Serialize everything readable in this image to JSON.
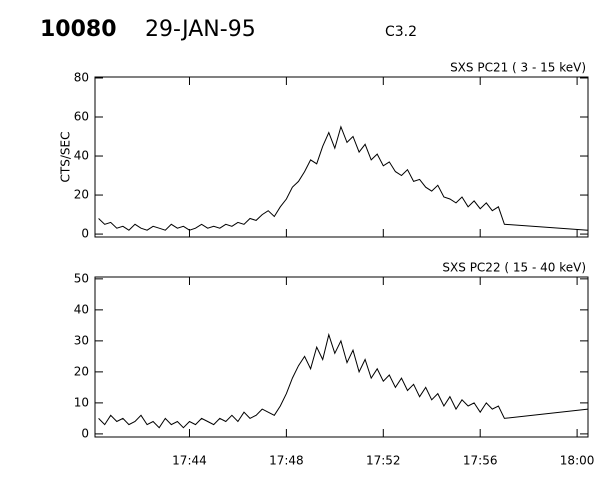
{
  "header": {
    "id": "10080",
    "date": "29-JAN-95",
    "class": "C3.2"
  },
  "chart_data": [
    {
      "type": "line",
      "subtitle": "SXS PC21  (  3 - 15 keV)",
      "y_label": "CTS/SEC",
      "xlim": [
        40.1,
        60.45
      ],
      "ylim": [
        -1.5,
        80.5
      ],
      "yticks": [
        0,
        20,
        40,
        60,
        80
      ],
      "x": [
        40.25,
        40.5,
        40.75,
        41.0,
        41.25,
        41.5,
        41.75,
        42.0,
        42.25,
        42.5,
        42.75,
        43.0,
        43.25,
        43.5,
        43.75,
        44.0,
        44.25,
        44.5,
        44.75,
        45.0,
        45.25,
        45.5,
        45.75,
        46.0,
        46.25,
        46.5,
        46.75,
        47.0,
        47.25,
        47.5,
        47.75,
        48.0,
        48.25,
        48.5,
        48.75,
        49.0,
        49.25,
        49.5,
        49.75,
        50.0,
        50.25,
        50.5,
        50.75,
        51.0,
        51.25,
        51.5,
        51.75,
        52.0,
        52.25,
        52.5,
        52.75,
        53.0,
        53.25,
        53.5,
        53.75,
        54.0,
        54.25,
        54.5,
        54.75,
        55.0,
        55.25,
        55.5,
        55.75,
        56.0,
        56.25,
        56.5,
        56.75,
        57.0,
        60.45
      ],
      "series": [
        {
          "color": "#000000",
          "values": [
            8,
            5,
            6,
            3,
            4,
            2,
            5,
            3,
            2,
            4,
            3,
            2,
            5,
            3,
            4,
            2,
            3,
            5,
            3,
            4,
            3,
            5,
            4,
            6,
            5,
            8,
            7,
            10,
            12,
            9,
            14,
            18,
            24,
            27,
            32,
            38,
            36,
            45,
            52,
            44,
            55,
            47,
            50,
            42,
            46,
            38,
            41,
            35,
            37,
            32,
            30,
            33,
            27,
            28,
            24,
            22,
            25,
            19,
            18,
            16,
            19,
            14,
            17,
            13,
            16,
            12,
            14,
            5,
            2
          ]
        }
      ]
    },
    {
      "type": "line",
      "subtitle": "SXS PC22  ( 15 - 40 keV)",
      "xlim": [
        40.1,
        60.45
      ],
      "ylim": [
        -1,
        50.6
      ],
      "yticks": [
        0,
        10,
        20,
        30,
        40,
        50
      ],
      "xticks": [
        {
          "value": 44,
          "label": "17:44"
        },
        {
          "value": 48,
          "label": "17:48"
        },
        {
          "value": 52,
          "label": "17:52"
        },
        {
          "value": 56,
          "label": "17:56"
        },
        {
          "value": 60,
          "label": "18:00"
        }
      ],
      "x": [
        40.25,
        40.5,
        40.75,
        41.0,
        41.25,
        41.5,
        41.75,
        42.0,
        42.25,
        42.5,
        42.75,
        43.0,
        43.25,
        43.5,
        43.75,
        44.0,
        44.25,
        44.5,
        44.75,
        45.0,
        45.25,
        45.5,
        45.75,
        46.0,
        46.25,
        46.5,
        46.75,
        47.0,
        47.25,
        47.5,
        47.75,
        48.0,
        48.25,
        48.5,
        48.75,
        49.0,
        49.25,
        49.5,
        49.75,
        50.0,
        50.25,
        50.5,
        50.75,
        51.0,
        51.25,
        51.5,
        51.75,
        52.0,
        52.25,
        52.5,
        52.75,
        53.0,
        53.25,
        53.5,
        53.75,
        54.0,
        54.25,
        54.5,
        54.75,
        55.0,
        55.25,
        55.5,
        55.75,
        56.0,
        56.25,
        56.5,
        56.75,
        57.0,
        60.45
      ],
      "series": [
        {
          "color": "#000000",
          "values": [
            5,
            3,
            6,
            4,
            5,
            3,
            4,
            6,
            3,
            4,
            2,
            5,
            3,
            4,
            2,
            4,
            3,
            5,
            4,
            3,
            5,
            4,
            6,
            4,
            7,
            5,
            6,
            8,
            7,
            6,
            9,
            13,
            18,
            22,
            25,
            21,
            28,
            24,
            32,
            26,
            30,
            23,
            27,
            20,
            24,
            18,
            21,
            17,
            19,
            15,
            18,
            14,
            16,
            12,
            15,
            11,
            13,
            9,
            12,
            8,
            11,
            9,
            10,
            7,
            10,
            8,
            9,
            5,
            8
          ]
        }
      ]
    }
  ]
}
